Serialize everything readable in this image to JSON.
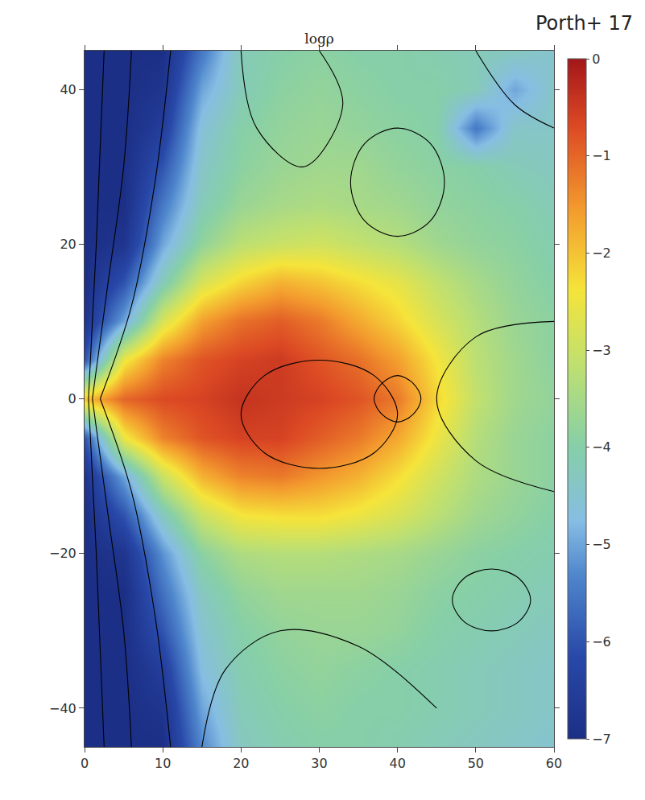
{
  "chart_data": {
    "type": "heatmap",
    "title": "logρ",
    "annotations": [
      "Porth+ 17"
    ],
    "xlim": [
      0,
      60
    ],
    "xticks": [
      0,
      10,
      20,
      30,
      40,
      50,
      60
    ],
    "ylim": [
      -45,
      45
    ],
    "yticks": [
      -40,
      -20,
      0,
      20,
      40
    ],
    "colorbar_range": [
      -7,
      0
    ],
    "colorbar_ticks": [
      0,
      -1,
      -2,
      -3,
      -4,
      -5,
      -6,
      -7
    ],
    "x": [
      0,
      5,
      10,
      15,
      20,
      25,
      30,
      35,
      40,
      45,
      50,
      55,
      60
    ],
    "y": [
      -45,
      -40,
      -35,
      -30,
      -25,
      -20,
      -15,
      -10,
      -5,
      0,
      5,
      10,
      15,
      20,
      25,
      30,
      35,
      40,
      45
    ],
    "z": [
      [
        -7,
        -7,
        -7,
        -5.3,
        -4.3,
        -4.1,
        -4,
        -4,
        -4.1,
        -4.2,
        -4.3,
        -4.4,
        -4.5
      ],
      [
        -7,
        -7,
        -6.8,
        -5,
        -4.2,
        -4,
        -3.9,
        -4,
        -4,
        -4.1,
        -4.2,
        -4.3,
        -4.4
      ],
      [
        -7,
        -7,
        -6.5,
        -4.7,
        -4.1,
        -3.9,
        -3.8,
        -3.9,
        -4,
        -4.1,
        -4.2,
        -4.3,
        -4.4
      ],
      [
        -7,
        -7,
        -6,
        -4.5,
        -4,
        -3.8,
        -3.7,
        -3.7,
        -3.8,
        -4,
        -4.1,
        -4.2,
        -4.3
      ],
      [
        -7,
        -7,
        -5.6,
        -4.3,
        -3.8,
        -3.6,
        -3.6,
        -3.6,
        -3.7,
        -3.9,
        -4,
        -4.1,
        -4.2
      ],
      [
        -7,
        -6.8,
        -5.2,
        -3.9,
        -3.4,
        -3.3,
        -3.3,
        -3.4,
        -3.5,
        -3.7,
        -3.9,
        -4,
        -4.1
      ],
      [
        -7,
        -6,
        -4.3,
        -3,
        -2.4,
        -2.3,
        -2.3,
        -2.5,
        -2.8,
        -3.2,
        -3.6,
        -3.8,
        -4
      ],
      [
        -6.8,
        -5,
        -3,
        -1.8,
        -1.3,
        -1.2,
        -1.5,
        -1.8,
        -2.3,
        -2.9,
        -3.4,
        -3.7,
        -3.9
      ],
      [
        -6,
        -2.5,
        -1.3,
        -0.8,
        -0.6,
        -0.6,
        -0.9,
        -1.2,
        -1.7,
        -2.5,
        -3.3,
        -3.7,
        -3.9
      ],
      [
        -2,
        -1,
        -0.7,
        -0.6,
        -0.4,
        -0.5,
        -0.6,
        -0.8,
        -1.2,
        -2.2,
        -3.1,
        -3.6,
        -3.8
      ],
      [
        -6,
        -2.5,
        -1.3,
        -0.8,
        -0.6,
        -0.5,
        -0.8,
        -1.1,
        -1.6,
        -2.4,
        -3.2,
        -3.6,
        -3.9
      ],
      [
        -6.8,
        -5,
        -2.8,
        -1.6,
        -1.1,
        -0.9,
        -1.2,
        -1.7,
        -2.2,
        -2.8,
        -3.3,
        -3.7,
        -3.9
      ],
      [
        -7,
        -6,
        -4.2,
        -2.8,
        -2.2,
        -1.8,
        -2,
        -2.3,
        -2.6,
        -3.1,
        -3.5,
        -3.8,
        -4
      ],
      [
        -7,
        -6.8,
        -5,
        -3.8,
        -3.2,
        -3,
        -2.9,
        -3.1,
        -3.3,
        -3.6,
        -3.8,
        -3.9,
        -4.1
      ],
      [
        -7,
        -7,
        -5.5,
        -4.2,
        -3.7,
        -3.5,
        -3.4,
        -3.5,
        -3.6,
        -3.8,
        -3.9,
        -4,
        -4.2
      ],
      [
        -7,
        -7,
        -6,
        -4.4,
        -3.9,
        -3.7,
        -3.6,
        -3.6,
        -3.8,
        -3.9,
        -4,
        -4.2,
        -4.3
      ],
      [
        -7,
        -7,
        -6.5,
        -4.6,
        -4,
        -3.8,
        -3.7,
        -3.8,
        -3.9,
        -4,
        -5.5,
        -4.4,
        -4.4
      ],
      [
        -7,
        -7,
        -6.8,
        -5,
        -4.2,
        -3.9,
        -3.8,
        -3.9,
        -4,
        -4,
        -4.2,
        -5,
        -4.4
      ],
      [
        -7,
        -7,
        -7,
        -5.5,
        -4.2,
        -4,
        -3.9,
        -4,
        -4,
        -4.1,
        -4.2,
        -4.3,
        -4.5
      ]
    ],
    "streamlines": [
      {
        "x": [
          1,
          3,
          5,
          6
        ],
        "y": [
          0,
          15,
          30,
          45
        ]
      },
      {
        "x": [
          1,
          3,
          5,
          6
        ],
        "y": [
          0,
          -15,
          -30,
          -45
        ]
      },
      {
        "x": [
          2,
          6,
          9,
          11
        ],
        "y": [
          0,
          12,
          28,
          45
        ]
      },
      {
        "x": [
          2,
          6,
          9,
          11
        ],
        "y": [
          0,
          -12,
          -28,
          -45
        ]
      },
      {
        "x": [
          0.5,
          1.5,
          2.5
        ],
        "y": [
          0,
          20,
          45
        ]
      },
      {
        "x": [
          0.5,
          1.5,
          2.5
        ],
        "y": [
          0,
          -20,
          -45
        ]
      },
      {
        "x": [
          57,
          55.5,
          52,
          48.5,
          47,
          48.5,
          52,
          55.5,
          57
        ],
        "y": [
          -26,
          -23.2,
          -22,
          -23.2,
          -26,
          -28.8,
          -30,
          -28.8,
          -26
        ]
      },
      {
        "x": [
          46,
          44.2,
          40,
          35.8,
          34,
          35.8,
          40,
          44.2,
          46
        ],
        "y": [
          28,
          33,
          35,
          33,
          28,
          23,
          21,
          23,
          28
        ]
      },
      {
        "x": [
          40,
          37,
          30,
          23,
          20,
          23,
          30,
          37,
          40
        ],
        "y": [
          -2,
          3,
          5,
          3,
          -2,
          -7,
          -9,
          -7,
          -2
        ]
      },
      {
        "x": [
          43,
          42,
          40,
          38,
          37,
          38,
          40,
          42,
          43
        ],
        "y": [
          0,
          2,
          3,
          2,
          0,
          -2,
          -3,
          -2,
          0
        ]
      },
      {
        "x": [
          20,
          22,
          28,
          33,
          30
        ],
        "y": [
          45,
          35,
          30,
          38,
          45
        ]
      },
      {
        "x": [
          60,
          50,
          45,
          50,
          60
        ],
        "y": [
          10,
          8,
          0,
          -8,
          -12
        ]
      },
      {
        "x": [
          15,
          18,
          25,
          35,
          45
        ],
        "y": [
          -45,
          -35,
          -30,
          -32,
          -40
        ]
      },
      {
        "x": [
          50,
          55,
          60
        ],
        "y": [
          45,
          38,
          35
        ]
      }
    ]
  }
}
